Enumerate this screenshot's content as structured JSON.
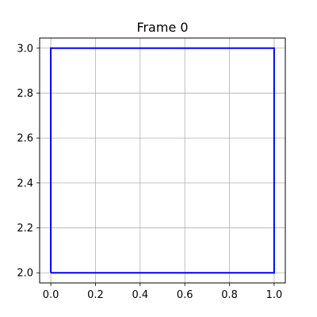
{
  "chart_data": {
    "type": "line",
    "title": "Frame 0",
    "xlabel": "",
    "ylabel": "",
    "xlim": [
      -0.05,
      1.05
    ],
    "ylim": [
      1.955,
      3.045
    ],
    "x_ticks": [
      0.0,
      0.2,
      0.4,
      0.6,
      0.8,
      1.0
    ],
    "x_tick_labels": [
      "0.0",
      "0.2",
      "0.4",
      "0.6",
      "0.8",
      "1.0"
    ],
    "y_ticks": [
      2.0,
      2.2,
      2.4,
      2.6,
      2.8,
      3.0
    ],
    "y_tick_labels": [
      "2.0",
      "2.2",
      "2.4",
      "2.6",
      "2.8",
      "3.0"
    ],
    "grid": true,
    "legend": "none",
    "series": [
      {
        "x": [
          0,
          1,
          1,
          0,
          0
        ],
        "y": [
          2,
          2,
          3,
          3,
          2
        ],
        "color": "#0000ff"
      }
    ]
  }
}
